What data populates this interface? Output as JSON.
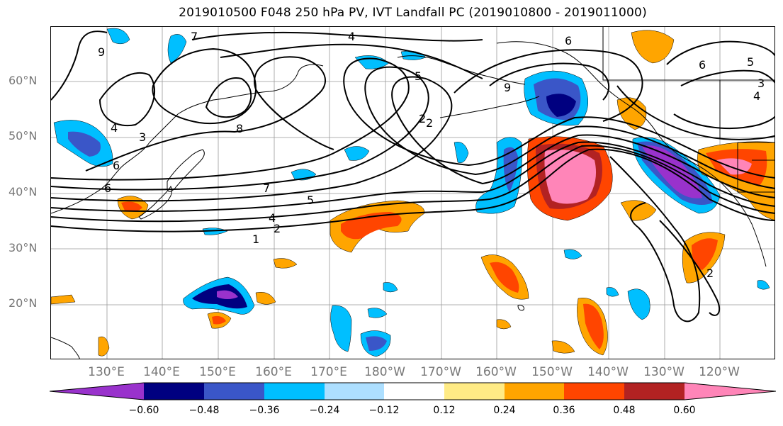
{
  "title": "2019010500 F048 250 hPa PV, IVT Landfall PC (2019010800 - 2019011000)",
  "lat_labels": [
    "60°N",
    "50°N",
    "40°N",
    "30°N",
    "20°N"
  ],
  "lon_labels": [
    "130°E",
    "140°E",
    "150°E",
    "160°E",
    "170°E",
    "180°W",
    "170°W",
    "160°W",
    "150°W",
    "140°W",
    "130°W",
    "120°W"
  ],
  "colorbar": {
    "ticks": [
      "−0.60",
      "−0.48",
      "−0.36",
      "−0.24",
      "−0.12",
      "0.12",
      "0.24",
      "0.36",
      "0.48",
      "0.60"
    ],
    "colors": [
      "#9932CC",
      "#000080",
      "#3A56C8",
      "#00BFFF",
      "#ADDFFF",
      "#FFFFFF",
      "#FFEB85",
      "#FFA500",
      "#FF4500",
      "#B22222",
      "#FF85B8"
    ]
  },
  "contour_labels": [
    "1",
    "2",
    "4",
    "5",
    "6",
    "7",
    "8",
    "9",
    "4",
    "2",
    "5",
    "6",
    "3",
    "2",
    "6",
    "4",
    "7",
    "6",
    "5",
    "3",
    "4",
    "9",
    "2"
  ]
}
